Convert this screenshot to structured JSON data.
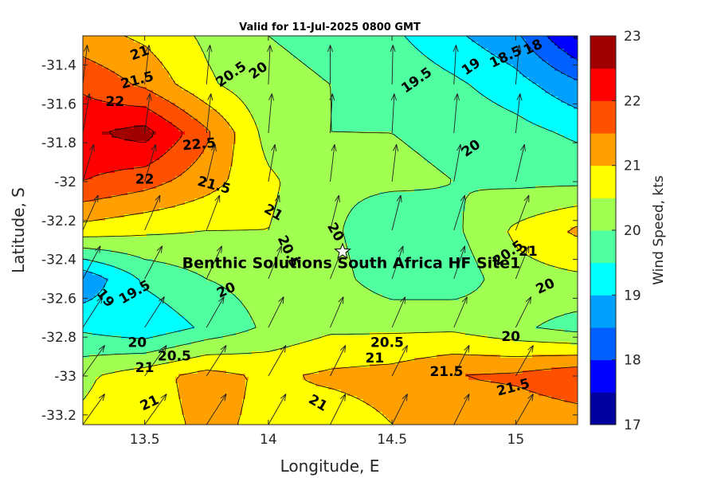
{
  "chart_data": {
    "type": "contour",
    "title": "Valid for 11-Jul-2025 0800 GMT",
    "xlabel": "Longitude, E",
    "ylabel": "Latitude, S",
    "colorbar_label": "Wind Speed, kts",
    "xlim": [
      13.25,
      15.25
    ],
    "ylim": [
      -33.25,
      -31.25
    ],
    "xticks": [
      "13.5",
      "14",
      "14.5",
      "15"
    ],
    "xtick_values": [
      13.5,
      14,
      14.5,
      15
    ],
    "yticks": [
      "-31.4",
      "-31.6",
      "-31.8",
      "-32",
      "-32.2",
      "-32.4",
      "-32.6",
      "-32.8",
      "-33",
      "-33.2"
    ],
    "ytick_values": [
      -31.4,
      -31.6,
      -31.8,
      -32,
      -32.2,
      -32.4,
      -32.6,
      -32.8,
      -33,
      -33.2
    ],
    "clim": [
      17,
      23
    ],
    "colorbar_ticks": [
      "17",
      "18",
      "19",
      "20",
      "21",
      "22",
      "23"
    ],
    "colorbar_tick_values": [
      17,
      18,
      19,
      20,
      21,
      22,
      23
    ],
    "contour_levels": [
      17,
      17.5,
      18,
      18.5,
      19,
      19.5,
      20,
      20.5,
      21,
      21.5,
      22,
      22.5,
      23
    ],
    "colors": [
      "#00009f",
      "#0000ff",
      "#0060ff",
      "#00a0ff",
      "#00ffff",
      "#50ffa0",
      "#a0ff50",
      "#ffff00",
      "#ffa000",
      "#ff5000",
      "#ff0000",
      "#a00000"
    ],
    "grid_lon": [
      13.25,
      13.5,
      13.75,
      14.0,
      14.25,
      14.5,
      14.75,
      15.0,
      15.25
    ],
    "grid_lat": [
      -31.25,
      -31.5,
      -31.75,
      -32.0,
      -32.25,
      -32.5,
      -32.75,
      -33.0,
      -33.25
    ],
    "speed_grid": [
      [
        21.2,
        20.9,
        20.4,
        20.0,
        19.9,
        19.6,
        19.1,
        18.6,
        17.4
      ],
      [
        21.9,
        21.4,
        20.6,
        20.1,
        20.0,
        19.9,
        19.6,
        19.2,
        18.6
      ],
      [
        22.4,
        22.7,
        21.6,
        20.3,
        20.0,
        20.0,
        19.9,
        19.7,
        19.4
      ],
      [
        22.0,
        21.7,
        21.2,
        20.6,
        20.1,
        20.1,
        20.0,
        19.9,
        19.9
      ],
      [
        20.8,
        20.6,
        20.5,
        20.5,
        20.1,
        19.6,
        19.9,
        20.6,
        21.1
      ],
      [
        18.6,
        19.6,
        20.0,
        20.2,
        20.2,
        19.7,
        19.7,
        20.3,
        20.4
      ],
      [
        19.4,
        19.1,
        19.6,
        20.1,
        20.4,
        20.4,
        20.4,
        20.1,
        19.8
      ],
      [
        20.4,
        20.8,
        21.2,
        20.9,
        21.1,
        21.2,
        21.5,
        21.6,
        21.9
      ],
      [
        20.6,
        20.8,
        21.1,
        20.9,
        20.7,
        21.0,
        21.0,
        21.1,
        21.2
      ]
    ],
    "wind_vectors": [
      {
        "lon": 13.25,
        "lat": -31.25,
        "u": 0.05,
        "v": 0.85
      },
      {
        "lon": 13.5,
        "lat": -31.25,
        "u": 0.05,
        "v": 0.85
      },
      {
        "lon": 13.75,
        "lat": -31.25,
        "u": 0.02,
        "v": 0.85
      },
      {
        "lon": 14.0,
        "lat": -31.25,
        "u": 0.02,
        "v": 0.85
      },
      {
        "lon": 14.25,
        "lat": -31.25,
        "u": -0.02,
        "v": 0.85
      },
      {
        "lon": 14.5,
        "lat": -31.25,
        "u": 0.0,
        "v": 0.85
      },
      {
        "lon": 14.75,
        "lat": -31.25,
        "u": 0.05,
        "v": 0.85
      },
      {
        "lon": 15.0,
        "lat": -31.25,
        "u": 0.08,
        "v": 0.85
      },
      {
        "lon": 15.25,
        "lat": -31.25,
        "u": 0.1,
        "v": 0.85
      },
      {
        "lon": 13.25,
        "lat": -31.5,
        "u": 0.1,
        "v": 0.9
      },
      {
        "lon": 13.5,
        "lat": -31.5,
        "u": 0.1,
        "v": 0.9
      },
      {
        "lon": 13.75,
        "lat": -31.5,
        "u": 0.08,
        "v": 0.9
      },
      {
        "lon": 14.0,
        "lat": -31.5,
        "u": 0.04,
        "v": 0.9
      },
      {
        "lon": 14.25,
        "lat": -31.5,
        "u": 0.0,
        "v": 0.9
      },
      {
        "lon": 14.5,
        "lat": -31.5,
        "u": 0.02,
        "v": 0.9
      },
      {
        "lon": 14.75,
        "lat": -31.5,
        "u": 0.05,
        "v": 0.9
      },
      {
        "lon": 15.0,
        "lat": -31.5,
        "u": 0.08,
        "v": 0.9
      },
      {
        "lon": 15.25,
        "lat": -31.5,
        "u": 0.1,
        "v": 0.9
      },
      {
        "lon": 13.25,
        "lat": -31.75,
        "u": 0.15,
        "v": 0.9
      },
      {
        "lon": 13.5,
        "lat": -31.75,
        "u": 0.12,
        "v": 0.9
      },
      {
        "lon": 13.75,
        "lat": -31.75,
        "u": 0.1,
        "v": 0.9
      },
      {
        "lon": 14.0,
        "lat": -31.75,
        "u": 0.08,
        "v": 0.9
      },
      {
        "lon": 14.25,
        "lat": -31.75,
        "u": 0.05,
        "v": 0.9
      },
      {
        "lon": 14.5,
        "lat": -31.75,
        "u": 0.05,
        "v": 0.9
      },
      {
        "lon": 14.75,
        "lat": -31.75,
        "u": 0.08,
        "v": 0.9
      },
      {
        "lon": 15.0,
        "lat": -31.75,
        "u": 0.1,
        "v": 0.9
      },
      {
        "lon": 15.25,
        "lat": -31.75,
        "u": 0.12,
        "v": 0.9
      },
      {
        "lon": 13.25,
        "lat": -32.0,
        "u": 0.25,
        "v": 0.85
      },
      {
        "lon": 13.5,
        "lat": -32.0,
        "u": 0.25,
        "v": 0.85
      },
      {
        "lon": 13.75,
        "lat": -32.0,
        "u": 0.2,
        "v": 0.85
      },
      {
        "lon": 14.0,
        "lat": -32.0,
        "u": 0.15,
        "v": 0.85
      },
      {
        "lon": 14.25,
        "lat": -32.0,
        "u": 0.1,
        "v": 0.85
      },
      {
        "lon": 14.5,
        "lat": -32.0,
        "u": 0.1,
        "v": 0.85
      },
      {
        "lon": 14.75,
        "lat": -32.0,
        "u": 0.15,
        "v": 0.85
      },
      {
        "lon": 15.0,
        "lat": -32.0,
        "u": 0.2,
        "v": 0.85
      },
      {
        "lon": 15.25,
        "lat": -32.0,
        "u": 0.25,
        "v": 0.85
      },
      {
        "lon": 13.25,
        "lat": -32.25,
        "u": 0.35,
        "v": 0.8
      },
      {
        "lon": 13.5,
        "lat": -32.25,
        "u": 0.35,
        "v": 0.8
      },
      {
        "lon": 13.75,
        "lat": -32.25,
        "u": 0.3,
        "v": 0.8
      },
      {
        "lon": 14.0,
        "lat": -32.25,
        "u": 0.25,
        "v": 0.8
      },
      {
        "lon": 14.25,
        "lat": -32.25,
        "u": 0.2,
        "v": 0.8
      },
      {
        "lon": 14.5,
        "lat": -32.25,
        "u": 0.2,
        "v": 0.8
      },
      {
        "lon": 14.75,
        "lat": -32.25,
        "u": 0.25,
        "v": 0.8
      },
      {
        "lon": 15.0,
        "lat": -32.25,
        "u": 0.3,
        "v": 0.8
      },
      {
        "lon": 15.25,
        "lat": -32.25,
        "u": 0.3,
        "v": 0.8
      },
      {
        "lon": 13.25,
        "lat": -32.5,
        "u": 0.4,
        "v": 0.75
      },
      {
        "lon": 13.5,
        "lat": -32.5,
        "u": 0.4,
        "v": 0.75
      },
      {
        "lon": 13.75,
        "lat": -32.5,
        "u": 0.35,
        "v": 0.75
      },
      {
        "lon": 14.0,
        "lat": -32.5,
        "u": 0.3,
        "v": 0.75
      },
      {
        "lon": 14.25,
        "lat": -32.5,
        "u": 0.3,
        "v": 0.75
      },
      {
        "lon": 14.5,
        "lat": -32.5,
        "u": 0.25,
        "v": 0.75
      },
      {
        "lon": 14.75,
        "lat": -32.5,
        "u": 0.25,
        "v": 0.75
      },
      {
        "lon": 15.0,
        "lat": -32.5,
        "u": 0.3,
        "v": 0.75
      },
      {
        "lon": 15.25,
        "lat": -32.5,
        "u": 0.35,
        "v": 0.75
      },
      {
        "lon": 13.25,
        "lat": -32.75,
        "u": 0.45,
        "v": 0.7
      },
      {
        "lon": 13.5,
        "lat": -32.75,
        "u": 0.45,
        "v": 0.7
      },
      {
        "lon": 13.75,
        "lat": -32.75,
        "u": 0.4,
        "v": 0.7
      },
      {
        "lon": 14.0,
        "lat": -32.75,
        "u": 0.35,
        "v": 0.7
      },
      {
        "lon": 14.25,
        "lat": -32.75,
        "u": 0.3,
        "v": 0.7
      },
      {
        "lon": 14.5,
        "lat": -32.75,
        "u": 0.3,
        "v": 0.7
      },
      {
        "lon": 14.75,
        "lat": -32.75,
        "u": 0.3,
        "v": 0.7
      },
      {
        "lon": 15.0,
        "lat": -32.75,
        "u": 0.35,
        "v": 0.7
      },
      {
        "lon": 15.25,
        "lat": -32.75,
        "u": 0.4,
        "v": 0.7
      },
      {
        "lon": 13.25,
        "lat": -33.0,
        "u": 0.5,
        "v": 0.7
      },
      {
        "lon": 13.5,
        "lat": -33.0,
        "u": 0.5,
        "v": 0.7
      },
      {
        "lon": 13.75,
        "lat": -33.0,
        "u": 0.45,
        "v": 0.7
      },
      {
        "lon": 14.0,
        "lat": -33.0,
        "u": 0.4,
        "v": 0.7
      },
      {
        "lon": 14.25,
        "lat": -33.0,
        "u": 0.35,
        "v": 0.7
      },
      {
        "lon": 14.5,
        "lat": -33.0,
        "u": 0.35,
        "v": 0.7
      },
      {
        "lon": 14.75,
        "lat": -33.0,
        "u": 0.35,
        "v": 0.7
      },
      {
        "lon": 15.0,
        "lat": -33.0,
        "u": 0.4,
        "v": 0.7
      },
      {
        "lon": 15.25,
        "lat": -33.0,
        "u": 0.45,
        "v": 0.7
      },
      {
        "lon": 13.25,
        "lat": -33.25,
        "u": 0.5,
        "v": 0.7
      },
      {
        "lon": 13.5,
        "lat": -33.25,
        "u": 0.5,
        "v": 0.7
      },
      {
        "lon": 13.75,
        "lat": -33.25,
        "u": 0.45,
        "v": 0.7
      },
      {
        "lon": 14.0,
        "lat": -33.25,
        "u": 0.4,
        "v": 0.7
      },
      {
        "lon": 14.25,
        "lat": -33.25,
        "u": 0.35,
        "v": 0.7
      },
      {
        "lon": 14.5,
        "lat": -33.25,
        "u": 0.35,
        "v": 0.7
      },
      {
        "lon": 14.75,
        "lat": -33.25,
        "u": 0.35,
        "v": 0.7
      },
      {
        "lon": 15.0,
        "lat": -33.25,
        "u": 0.4,
        "v": 0.7
      },
      {
        "lon": 15.25,
        "lat": -33.25,
        "u": 0.45,
        "v": 0.7
      }
    ],
    "contour_labels": [
      {
        "text": "21",
        "lon": 13.48,
        "lat": -31.34,
        "angle": 20
      },
      {
        "text": "21.5",
        "lon": 13.47,
        "lat": -31.48,
        "angle": 15
      },
      {
        "text": "22",
        "lon": 13.38,
        "lat": -31.59,
        "angle": 0
      },
      {
        "text": "22.5",
        "lon": 13.72,
        "lat": -31.81,
        "angle": 5
      },
      {
        "text": "22",
        "lon": 13.5,
        "lat": -31.99,
        "angle": 0
      },
      {
        "text": "21.5",
        "lon": 13.78,
        "lat": -32.02,
        "angle": -15
      },
      {
        "text": "21",
        "lon": 14.02,
        "lat": -32.16,
        "angle": -30
      },
      {
        "text": "20.5",
        "lon": 13.85,
        "lat": -31.45,
        "angle": 35
      },
      {
        "text": "20",
        "lon": 13.96,
        "lat": -31.43,
        "angle": 35
      },
      {
        "text": "19.5",
        "lon": 14.6,
        "lat": -31.48,
        "angle": 35
      },
      {
        "text": "19",
        "lon": 14.82,
        "lat": -31.41,
        "angle": 35
      },
      {
        "text": "18.5",
        "lon": 14.96,
        "lat": -31.36,
        "angle": 25
      },
      {
        "text": "18",
        "lon": 15.07,
        "lat": -31.31,
        "angle": 25
      },
      {
        "text": "20",
        "lon": 14.82,
        "lat": -31.83,
        "angle": 35
      },
      {
        "text": "20",
        "lon": 14.27,
        "lat": -32.26,
        "angle": -60
      },
      {
        "text": "20.5",
        "lon": 14.08,
        "lat": -32.36,
        "angle": -65
      },
      {
        "text": "20.5",
        "lon": 14.97,
        "lat": -32.37,
        "angle": 35
      },
      {
        "text": "21",
        "lon": 15.05,
        "lat": -32.36,
        "angle": 0
      },
      {
        "text": "20",
        "lon": 15.12,
        "lat": -32.54,
        "angle": 25
      },
      {
        "text": "19.5",
        "lon": 13.46,
        "lat": -32.57,
        "angle": 30
      },
      {
        "text": "19",
        "lon": 13.34,
        "lat": -32.6,
        "angle": -50
      },
      {
        "text": "20",
        "lon": 13.83,
        "lat": -32.56,
        "angle": 25
      },
      {
        "text": "20",
        "lon": 13.47,
        "lat": -32.83,
        "angle": 0
      },
      {
        "text": "20.5",
        "lon": 13.62,
        "lat": -32.9,
        "angle": 0
      },
      {
        "text": "21",
        "lon": 13.5,
        "lat": -32.96,
        "angle": 0
      },
      {
        "text": "20.5",
        "lon": 14.48,
        "lat": -32.83,
        "angle": 0
      },
      {
        "text": "20",
        "lon": 14.98,
        "lat": -32.8,
        "angle": 0
      },
      {
        "text": "21",
        "lon": 14.43,
        "lat": -32.91,
        "angle": 0
      },
      {
        "text": "21.5",
        "lon": 14.72,
        "lat": -32.98,
        "angle": 0
      },
      {
        "text": "21.5",
        "lon": 14.99,
        "lat": -33.06,
        "angle": 15
      },
      {
        "text": "21",
        "lon": 13.52,
        "lat": -33.14,
        "angle": 25
      },
      {
        "text": "21",
        "lon": 14.2,
        "lat": -33.14,
        "angle": -30
      }
    ],
    "site": {
      "name": "Benthic Solutions South Africa HF Site1",
      "lon": 14.3,
      "lat": -32.36
    }
  }
}
